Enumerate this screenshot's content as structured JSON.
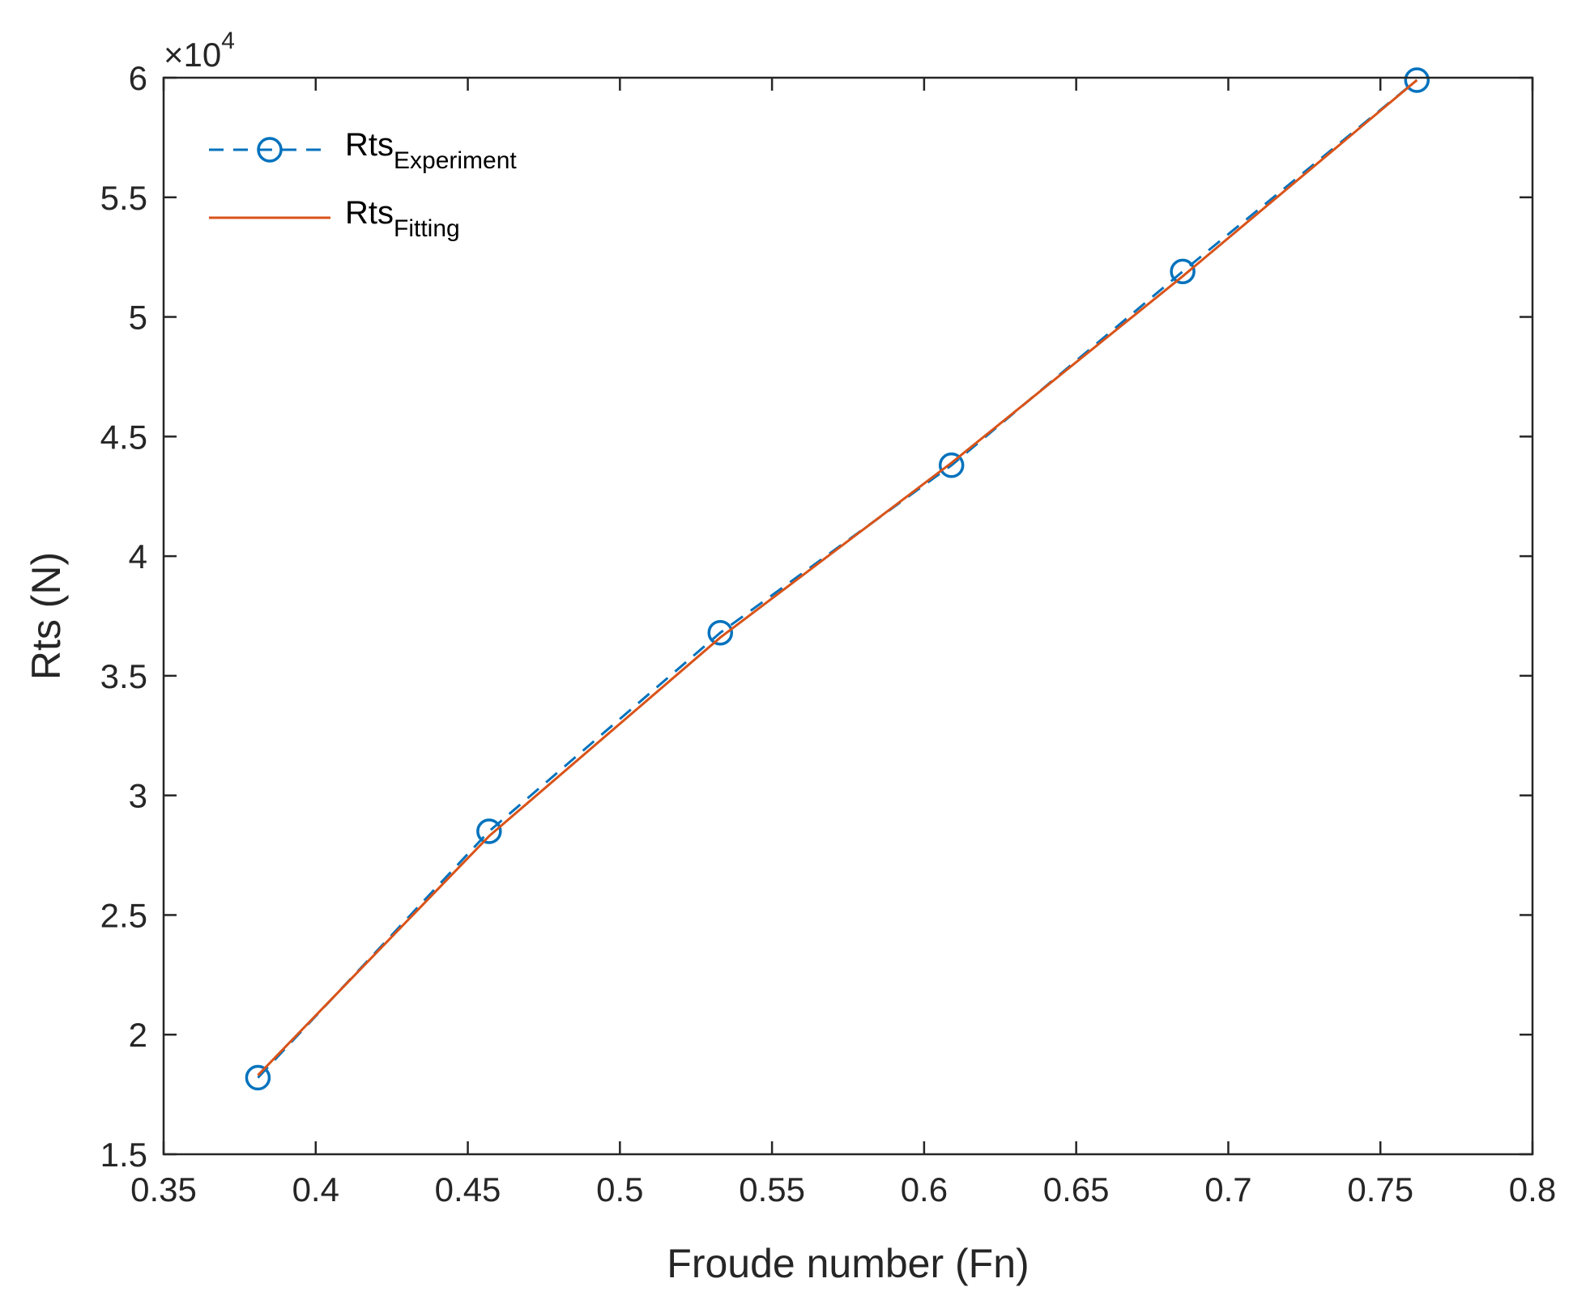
{
  "chart_data": {
    "type": "line",
    "xlabel": "Froude number (Fn)",
    "ylabel": "Rts (N)",
    "exponent_label": {
      "base": "×10",
      "power": "4"
    },
    "xlim": [
      0.35,
      0.8
    ],
    "ylim": [
      1.5,
      6
    ],
    "xticks": [
      "0.35",
      "0.4",
      "0.45",
      "0.5",
      "0.55",
      "0.6",
      "0.65",
      "0.7",
      "0.75",
      "0.8"
    ],
    "yticks": [
      "1.5",
      "2",
      "2.5",
      "3",
      "3.5",
      "4",
      "4.5",
      "5",
      "5.5",
      "6"
    ],
    "legend_position": "top-left",
    "grid": false,
    "series": [
      {
        "name": "Rts",
        "name_sub": "Experiment",
        "style": "dashed-circle",
        "color": "#0072BD",
        "x": [
          0.381,
          0.457,
          0.533,
          0.609,
          0.685,
          0.762
        ],
        "y": [
          1.82,
          2.85,
          3.68,
          4.38,
          5.19,
          5.99
        ]
      },
      {
        "name": "Rts",
        "name_sub": "Fitting",
        "style": "solid",
        "color": "#D95319",
        "x": [
          0.381,
          0.457,
          0.533,
          0.609,
          0.685,
          0.762
        ],
        "y": [
          1.83,
          2.83,
          3.66,
          4.39,
          5.17,
          5.99
        ]
      }
    ]
  }
}
